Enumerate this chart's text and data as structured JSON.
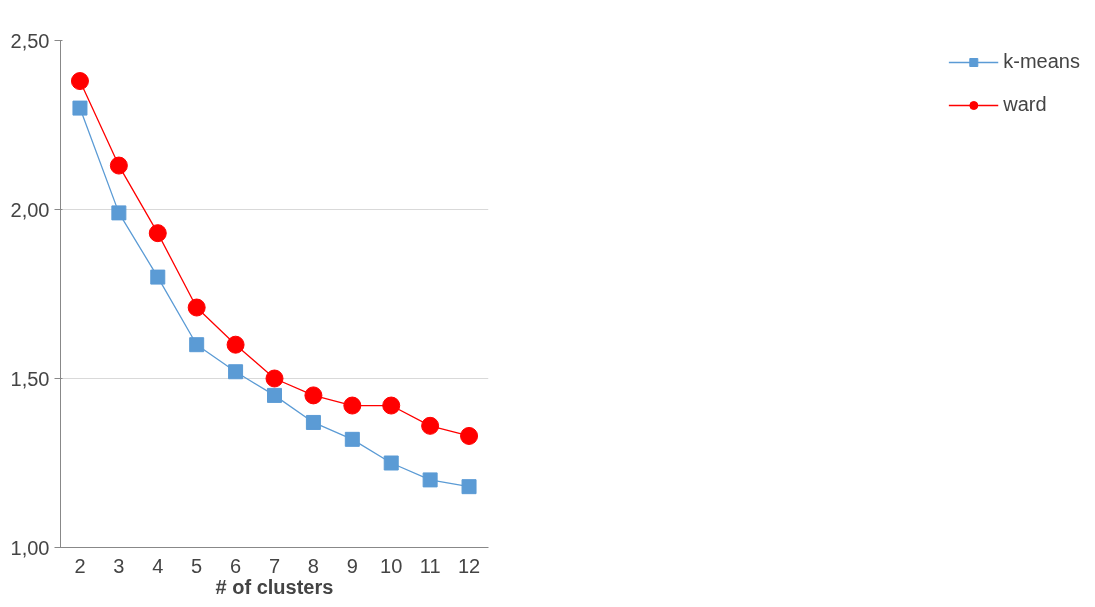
{
  "chart_data": {
    "type": "line",
    "xlabel": "# of clusters",
    "categories": [
      "2",
      "3",
      "4",
      "5",
      "6",
      "7",
      "8",
      "9",
      "10",
      "11",
      "12"
    ],
    "series": [
      {
        "name": "k-means",
        "color": "#5b9bd5",
        "marker": "square",
        "values": [
          2.3,
          1.99,
          1.8,
          1.6,
          1.52,
          1.45,
          1.37,
          1.32,
          1.25,
          1.2,
          1.18
        ]
      },
      {
        "name": "ward",
        "color": "#ff0000",
        "marker": "circle",
        "values": [
          2.38,
          2.13,
          1.93,
          1.71,
          1.6,
          1.5,
          1.45,
          1.42,
          1.42,
          1.36,
          1.33
        ]
      }
    ],
    "ylim": [
      1.0,
      2.5
    ],
    "yticks": [
      {
        "value": 1.0,
        "label": "1,00"
      },
      {
        "value": 1.5,
        "label": "1,50"
      },
      {
        "value": 2.0,
        "label": "2,00"
      },
      {
        "value": 2.5,
        "label": "2,50"
      }
    ],
    "grid": "y",
    "legend": "right"
  }
}
